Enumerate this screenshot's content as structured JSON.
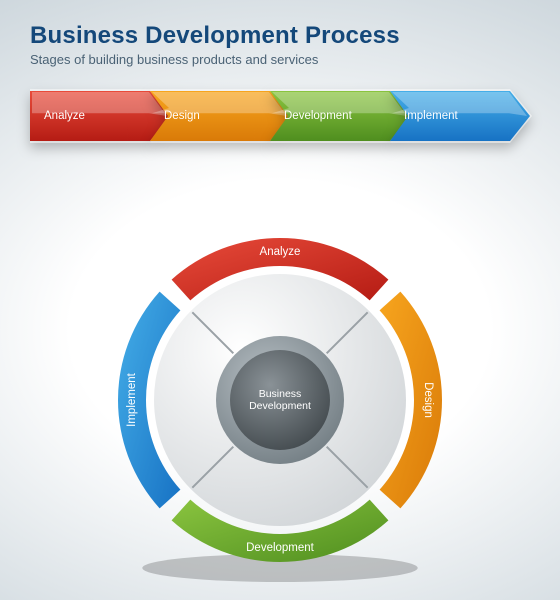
{
  "header": {
    "title": "Business Development Process",
    "subtitle": "Stages of building business products and services",
    "title_color": "#14487a",
    "subtitle_color": "#4a6275",
    "title_fontsize": 24,
    "subtitle_fontsize": 13
  },
  "stages": [
    {
      "label": "Analyze",
      "color_light": "#e84b3a",
      "color_dark": "#b51c14"
    },
    {
      "label": "Design",
      "color_light": "#f7a51e",
      "color_dark": "#d97a08"
    },
    {
      "label": "Development",
      "color_light": "#8ac43f",
      "color_dark": "#4f8e1f"
    },
    {
      "label": "Implement",
      "color_light": "#45aee8",
      "color_dark": "#1772c4"
    }
  ],
  "chevron_chart": {
    "type": "chevron-process",
    "count": 4,
    "item_width": 142,
    "item_height": 54,
    "overlap": 22,
    "label_color": "#ffffff",
    "label_fontsize": 11.5,
    "shadow": "0 6px 6px rgba(0,0,0,0.25)"
  },
  "wheel_chart": {
    "type": "cycle-donut",
    "diameter": 340,
    "outer_radius": 162,
    "ring_inner_radius": 134,
    "inner_disc_radius": 126,
    "hub_outer_radius": 64,
    "hub_inner_radius": 50,
    "gap_degrees": 6,
    "hub_ring_color_light": "#b8c0c5",
    "hub_ring_color_dark": "#6f7a80",
    "hub_core_color_light": "#8a9297",
    "hub_core_color_dark": "#3a4145",
    "inner_disc_fill_light": "#ffffff",
    "inner_disc_fill_dark": "#d0d4d7",
    "divider_color": "#9aa1a6",
    "center_label_line1": "Business",
    "center_label_line2": "Development",
    "center_label_color": "#ffffff",
    "center_label_fontsize": 10.5,
    "segment_label_fontsize": 11.5,
    "shadow": "0 10px 14px rgba(0,0,0,0.30)"
  },
  "background": {
    "gradient_inner": "#ffffff",
    "gradient_outer": "#b8c5cd"
  }
}
